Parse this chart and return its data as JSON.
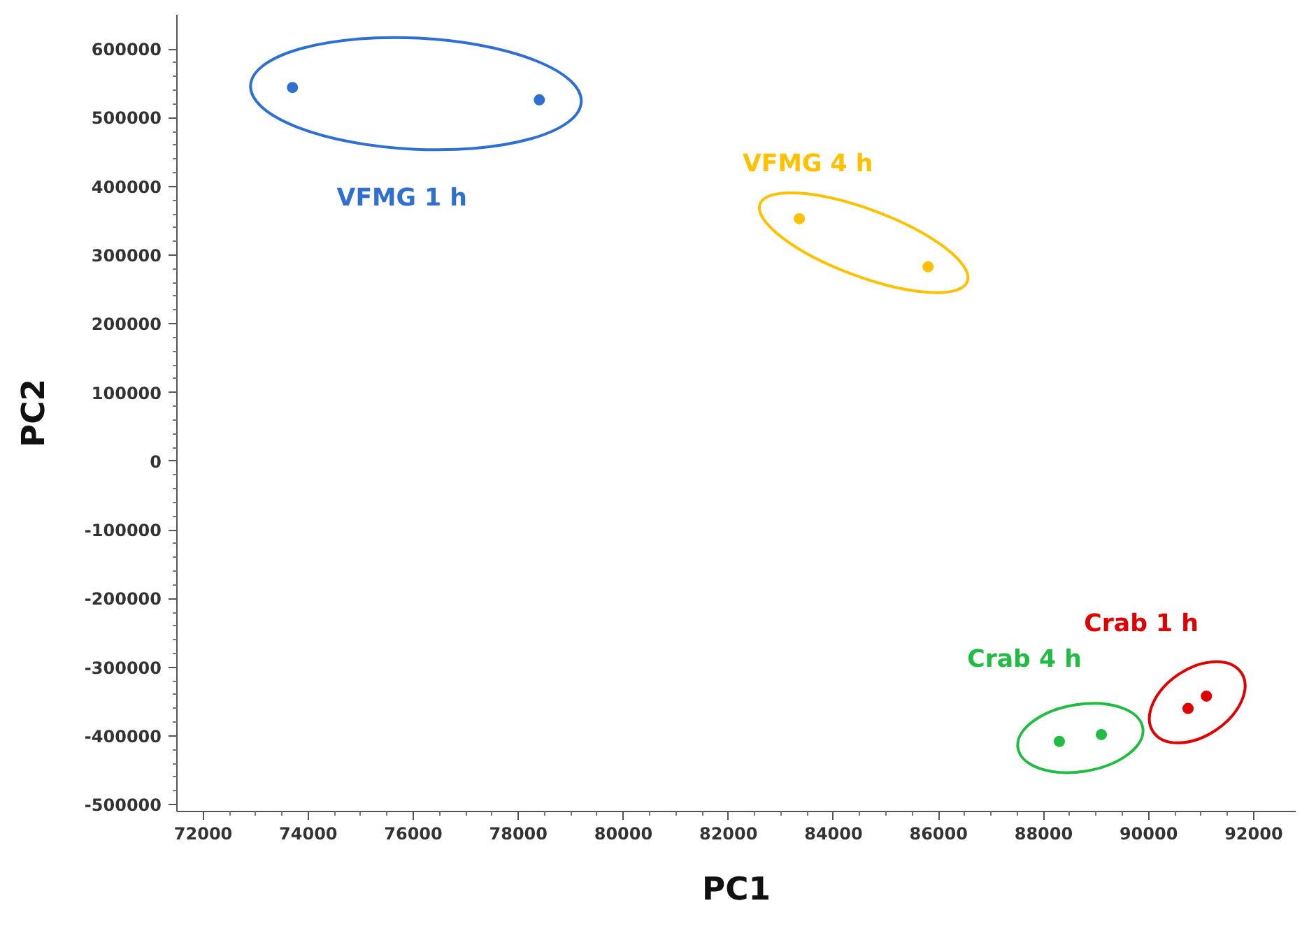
{
  "chart_data": {
    "type": "scatter",
    "xlabel": "PC1",
    "ylabel": "PC2",
    "marker": "circle",
    "grid": false,
    "xlim": [
      71500,
      92800
    ],
    "ylim": [
      -510000,
      650000
    ],
    "xticks": [
      72000,
      74000,
      76000,
      78000,
      80000,
      82000,
      84000,
      86000,
      88000,
      90000,
      92000
    ],
    "yticks": [
      -500000,
      -400000,
      -300000,
      -200000,
      -100000,
      0,
      100000,
      200000,
      300000,
      400000,
      500000,
      600000
    ],
    "series": [
      {
        "name": "VFMG 1 h",
        "color": "#2f6fd0",
        "x": [
          73700,
          78400
        ],
        "values": [
          544000,
          526000
        ]
      },
      {
        "name": "VFMG 4 h",
        "color": "#ffc000",
        "x": [
          83350,
          85800
        ],
        "values": [
          353000,
          283000
        ]
      },
      {
        "name": "Crab 4 h",
        "color": "#22bb44",
        "x": [
          88300,
          89100
        ],
        "values": [
          -408000,
          -398000
        ]
      },
      {
        "name": "Crab 1 h",
        "color": "#e00000",
        "x": [
          90750,
          91100
        ],
        "values": [
          -360000,
          -342000
        ]
      }
    ]
  }
}
